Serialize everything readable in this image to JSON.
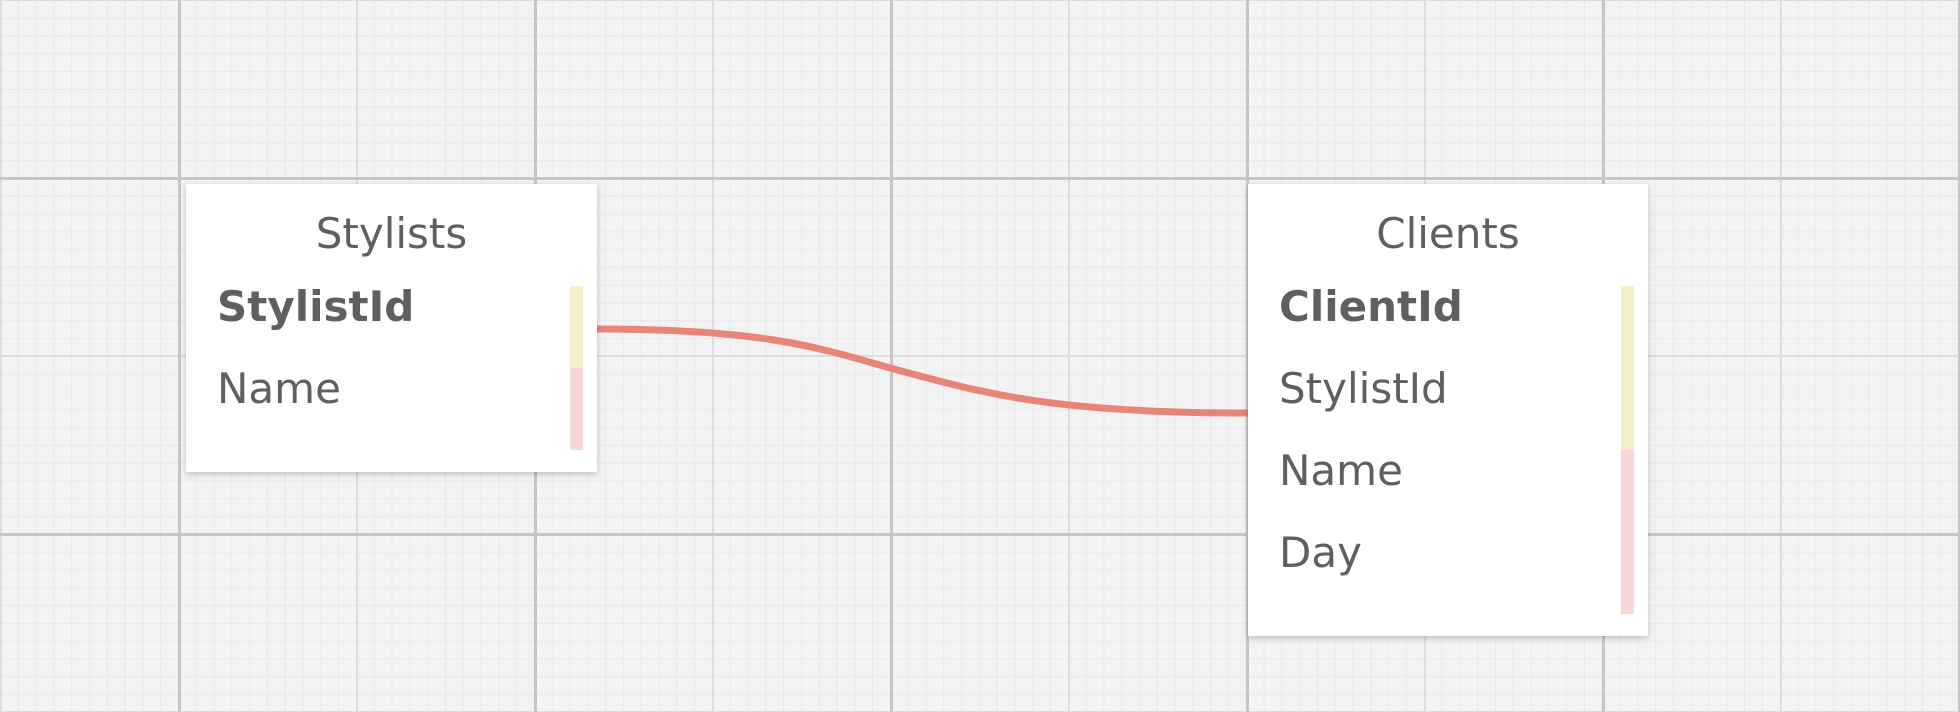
{
  "diagram": {
    "tables": [
      {
        "name": "Stylists",
        "fields": [
          "StylistId",
          "Name"
        ],
        "primary_key": "StylistId"
      },
      {
        "name": "Clients",
        "fields": [
          "ClientId",
          "StylistId",
          "Name",
          "Day"
        ],
        "primary_key": "ClientId"
      }
    ],
    "relations": [
      {
        "from": "Stylists.StylistId",
        "to": "Clients.StylistId"
      }
    ],
    "colors": {
      "relation_line": "#e8857a",
      "key_field_strip": "#f3f0c8",
      "plain_field_strip": "#f8d6d6",
      "text": "#5f5f5f",
      "background": "#f3f3f3"
    }
  }
}
